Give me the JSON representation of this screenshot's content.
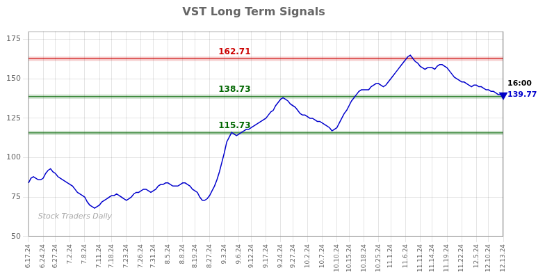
{
  "chart_data": {
    "type": "line",
    "title": "VST Long Term Signals",
    "color": "#0000cc",
    "categories": [
      "6.17.24",
      null,
      null,
      null,
      null,
      null,
      "6.24.24",
      null,
      null,
      null,
      null,
      "6.27.24",
      null,
      null,
      null,
      null,
      null,
      "7.2.24",
      null,
      null,
      null,
      null,
      null,
      "7.8.24",
      null,
      null,
      null,
      null,
      null,
      "7.11.24",
      null,
      null,
      null,
      null,
      "7.18.24",
      null,
      null,
      null,
      null,
      null,
      "7.23.24",
      null,
      null,
      null,
      null,
      null,
      "7.26.24",
      null,
      null,
      null,
      null,
      "7.31.24",
      null,
      null,
      null,
      null,
      null,
      "8.5.24",
      null,
      null,
      null,
      null,
      null,
      "8.8.24",
      null,
      null,
      null,
      null,
      "8.19.24",
      null,
      null,
      null,
      null,
      null,
      "8.27.24",
      null,
      null,
      null,
      null,
      null,
      "9.3.24",
      null,
      null,
      null,
      null,
      null,
      "9.6.24",
      null,
      null,
      null,
      null,
      "9.12.24",
      null,
      null,
      null,
      null,
      null,
      "9.17.24",
      null,
      null,
      null,
      null,
      null,
      "9.24.24",
      null,
      null,
      null,
      null,
      "9.27.24",
      null,
      null,
      null,
      null,
      null,
      "10.2.24",
      null,
      null,
      null,
      null,
      null,
      "10.7.24",
      null,
      null,
      null,
      null,
      null,
      "10.10.24",
      null,
      null,
      null,
      null,
      "10.15.24",
      null,
      null,
      null,
      null,
      null,
      "10.18.24",
      null,
      null,
      null,
      null,
      null,
      "10.25.24",
      null,
      null,
      null,
      null,
      "11.1.24",
      null,
      null,
      null,
      null,
      null,
      "11.6.24",
      null,
      null,
      null,
      null,
      null,
      "11.11.24",
      null,
      null,
      null,
      null,
      "11.14.24",
      null,
      null,
      null,
      null,
      null,
      "11.19.24",
      null,
      null,
      null,
      null,
      null,
      "11.22.24",
      null,
      null,
      null,
      null,
      null,
      "12.5.24",
      null,
      null,
      null,
      null,
      "12.10.24",
      null,
      null,
      null,
      null,
      null,
      "12.13.24"
    ],
    "values": [
      84,
      87,
      88,
      87,
      86,
      86,
      87,
      90,
      92,
      93,
      91,
      90,
      88,
      87,
      86,
      85,
      84,
      83,
      82,
      80,
      78,
      77,
      76,
      75,
      72,
      70,
      69,
      68,
      69,
      70,
      72,
      73,
      74,
      75,
      76,
      76,
      77,
      76,
      75,
      74,
      73,
      74,
      75,
      77,
      78,
      78,
      79,
      80,
      80,
      79,
      78,
      79,
      80,
      82,
      83,
      83,
      84,
      84,
      83,
      82,
      82,
      82,
      83,
      84,
      84,
      83,
      82,
      80,
      79,
      78,
      75,
      73,
      73,
      74,
      76,
      79,
      82,
      86,
      91,
      97,
      103,
      110,
      113,
      116,
      115,
      114,
      115,
      116,
      117,
      118,
      118,
      119,
      120,
      121,
      122,
      123,
      124,
      125,
      127,
      129,
      130,
      133,
      135,
      137,
      138,
      137,
      136,
      134,
      133,
      132,
      130,
      128,
      127,
      127,
      126,
      125,
      125,
      124,
      123,
      123,
      122,
      121,
      120,
      119,
      117,
      118,
      119,
      122,
      125,
      128,
      130,
      133,
      136,
      138,
      140,
      142,
      143,
      143,
      143,
      143,
      145,
      146,
      147,
      147,
      146,
      145,
      146,
      148,
      150,
      152,
      154,
      156,
      158,
      160,
      162,
      164,
      165,
      163,
      161,
      160,
      158,
      157,
      156,
      157,
      157,
      157,
      156,
      158,
      159,
      159,
      158,
      157,
      155,
      153,
      151,
      150,
      149,
      148,
      148,
      147,
      146,
      145,
      146,
      146,
      145,
      145,
      144,
      143,
      143,
      142,
      142,
      141,
      140,
      140,
      139.77
    ],
    "ylim": [
      50,
      180
    ],
    "yticks": [
      50,
      75,
      100,
      125,
      150,
      175
    ],
    "grid": true,
    "annotations": [
      {
        "type": "hline",
        "value": 162.71,
        "label": "162.71",
        "color": "#cc0000"
      },
      {
        "type": "hline",
        "value": 138.73,
        "label": "138.73",
        "color": "#006600"
      },
      {
        "type": "hline",
        "value": 115.73,
        "label": "115.73",
        "color": "#006600"
      },
      {
        "type": "last_price",
        "value": 139.77,
        "label": "16:00",
        "value_label": "139.77",
        "color": "#0000cc",
        "marker": "triangle-down"
      },
      {
        "type": "text",
        "text": "Stock Traders Daily",
        "color": "#aaaaaa"
      }
    ]
  }
}
